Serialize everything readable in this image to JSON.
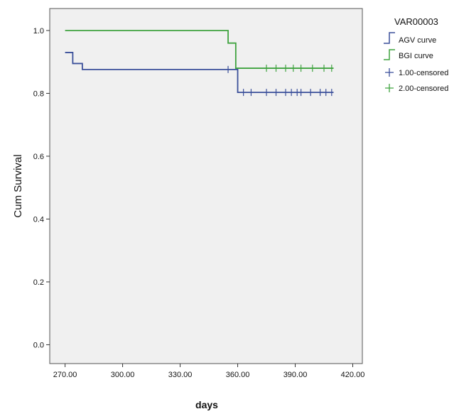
{
  "chart_data": {
    "type": "line",
    "subtype": "kaplan-meier-step",
    "xlabel": "days",
    "ylabel": "Cum Survival",
    "xlim": [
      262,
      425
    ],
    "ylim": [
      -0.06,
      1.07
    ],
    "x_ticks": [
      270,
      300,
      330,
      360,
      390,
      420
    ],
    "x_tick_labels": [
      "270.00",
      "300.00",
      "330.00",
      "360.00",
      "390.00",
      "420.00"
    ],
    "y_ticks": [
      0.0,
      0.2,
      0.4,
      0.6,
      0.8,
      1.0
    ],
    "y_tick_labels": [
      "0.0",
      "0.2",
      "0.4",
      "0.6",
      "0.8",
      "1.0"
    ],
    "grid": false,
    "plot_background": "#f0f0f0",
    "legend": {
      "title": "VAR00003",
      "position": "right",
      "entries": [
        {
          "label": "AGV curve",
          "kind": "step",
          "color": "#3a4f9a"
        },
        {
          "label": "BGI curve",
          "kind": "step",
          "color": "#3fa33f"
        },
        {
          "label": "1.00-censored",
          "kind": "plus",
          "color": "#3a4f9a"
        },
        {
          "label": "2.00-censored",
          "kind": "plus",
          "color": "#3fa33f"
        }
      ]
    },
    "series": [
      {
        "name": "AGV curve",
        "color": "#3a4f9a",
        "steps": [
          {
            "x": 270,
            "y": 0.93
          },
          {
            "x": 274,
            "y": 0.895
          },
          {
            "x": 279,
            "y": 0.876
          },
          {
            "x": 360,
            "y": 0.803
          },
          {
            "x": 410,
            "y": 0.803
          }
        ],
        "censored": [
          {
            "x": 355,
            "y": 0.876
          },
          {
            "x": 363,
            "y": 0.803
          },
          {
            "x": 367,
            "y": 0.803
          },
          {
            "x": 375,
            "y": 0.803
          },
          {
            "x": 380,
            "y": 0.803
          },
          {
            "x": 385,
            "y": 0.803
          },
          {
            "x": 388,
            "y": 0.803
          },
          {
            "x": 391,
            "y": 0.803
          },
          {
            "x": 393,
            "y": 0.803
          },
          {
            "x": 398,
            "y": 0.803
          },
          {
            "x": 403,
            "y": 0.803
          },
          {
            "x": 406,
            "y": 0.803
          },
          {
            "x": 409,
            "y": 0.803
          }
        ]
      },
      {
        "name": "BGI curve",
        "color": "#3fa33f",
        "steps": [
          {
            "x": 270,
            "y": 1.0
          },
          {
            "x": 355,
            "y": 0.96
          },
          {
            "x": 359,
            "y": 0.88
          },
          {
            "x": 410,
            "y": 0.88
          }
        ],
        "censored": [
          {
            "x": 375,
            "y": 0.88
          },
          {
            "x": 380,
            "y": 0.88
          },
          {
            "x": 385,
            "y": 0.88
          },
          {
            "x": 389,
            "y": 0.88
          },
          {
            "x": 393,
            "y": 0.88
          },
          {
            "x": 399,
            "y": 0.88
          },
          {
            "x": 405,
            "y": 0.88
          },
          {
            "x": 409,
            "y": 0.88
          }
        ]
      }
    ]
  }
}
